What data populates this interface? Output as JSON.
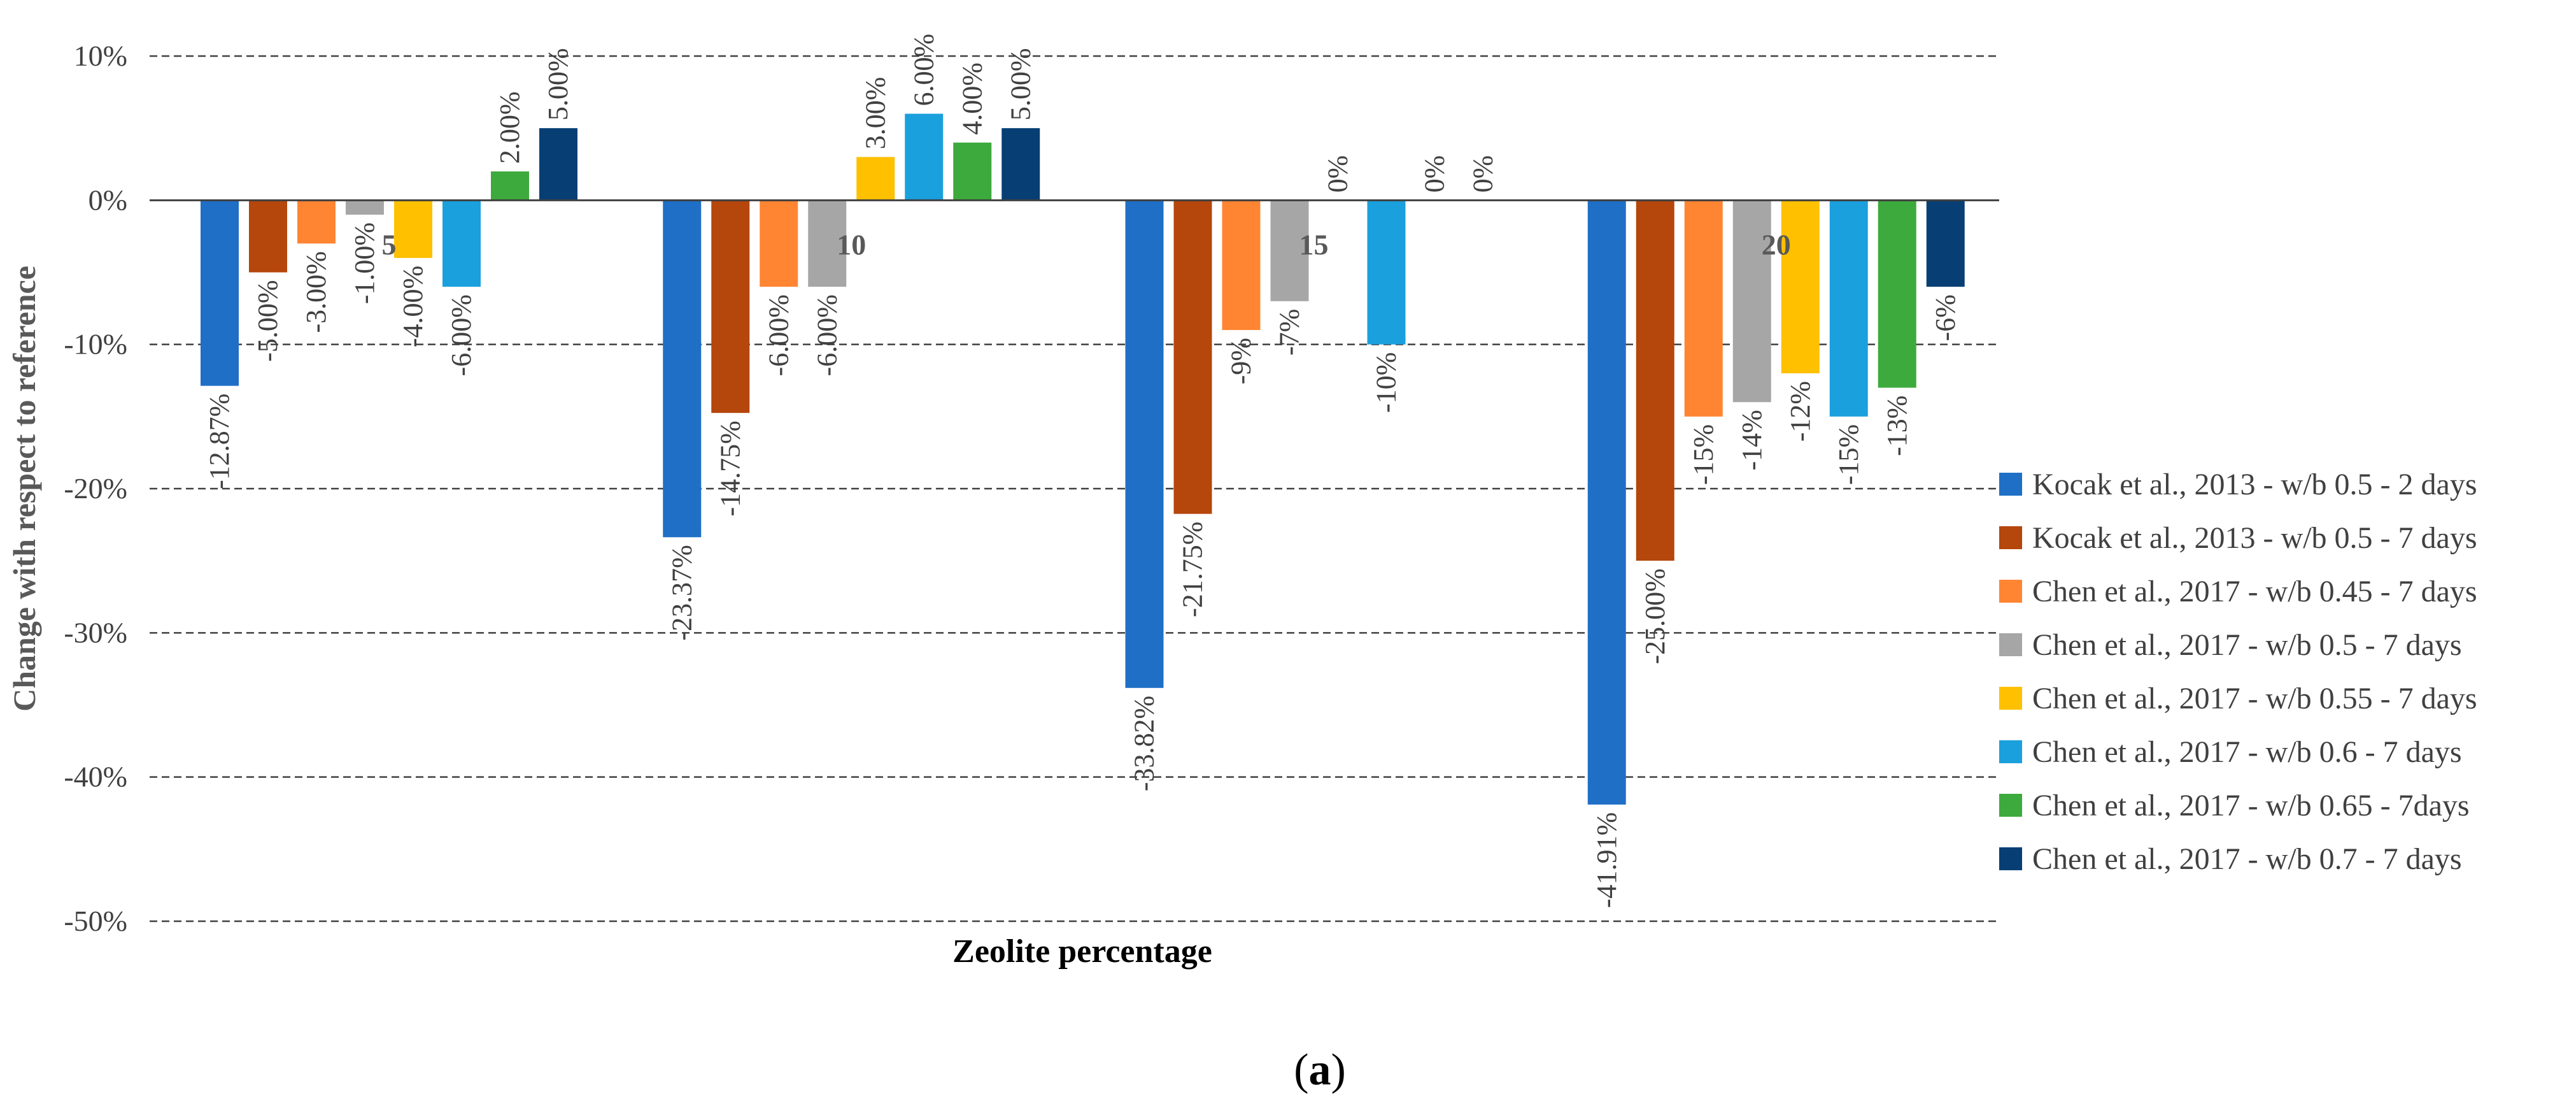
{
  "chart_data": {
    "type": "bar",
    "categories": [
      "5",
      "10",
      "15",
      "20"
    ],
    "ylabel": "Change with respect to reference",
    "xlabel": "Zeolite percentage",
    "ylim": [
      -50,
      10
    ],
    "yticks": [
      10,
      0,
      -10,
      -20,
      -30,
      -40,
      -50
    ],
    "ytick_labels": [
      "10%",
      "0%",
      "-10%",
      "-20%",
      "-30%",
      "-40%",
      "-50%"
    ],
    "grid": "horizontal dashed",
    "legend_position": "right",
    "series": [
      {
        "name": "Kocak et al., 2013 - w/b 0.5 - 2 days",
        "color": "#1F6FC6",
        "values": [
          -12.87,
          -23.37,
          -33.82,
          -41.91
        ],
        "labels": [
          "-12.87%",
          "-23.37%",
          "-33.82%",
          "-41.91%"
        ]
      },
      {
        "name": "Kocak et al., 2013 - w/b 0.5 - 7 days",
        "color": "#B5460C",
        "values": [
          -5.0,
          -14.75,
          -21.75,
          -25.0
        ],
        "labels": [
          "-5.00%",
          "-14.75%",
          "-21.75%",
          "-25.00%"
        ]
      },
      {
        "name": "Chen et al., 2017 - w/b 0.45 - 7 days",
        "color": "#FF8533",
        "values": [
          -3.0,
          -6.0,
          -9,
          -15
        ],
        "labels": [
          "-3.00%",
          "-6.00%",
          "-9%",
          "-15%"
        ]
      },
      {
        "name": "Chen et al., 2017 - w/b 0.5 - 7 days",
        "color": "#A6A6A6",
        "values": [
          -1.0,
          -6.0,
          -7,
          -14
        ],
        "labels": [
          "-1.00%",
          "-6.00%",
          "-7%",
          "-14%"
        ]
      },
      {
        "name": "Chen et al., 2017 - w/b 0.55 - 7 days",
        "color": "#FFC000",
        "values": [
          -4.0,
          3.0,
          0,
          -12
        ],
        "labels": [
          "-4.00%",
          "3.00%",
          "0%",
          "-12%"
        ]
      },
      {
        "name": "Chen et al., 2017 - w/b 0.6 - 7 days",
        "color": "#1AA0DD",
        "values": [
          -6.0,
          6.0,
          -10,
          -15
        ],
        "labels": [
          "-6.00%",
          "6.00%",
          "-10%",
          "-15%"
        ]
      },
      {
        "name": "Chen et al., 2017 - w/b 0.65 - 7days",
        "color": "#3DAA3D",
        "values": [
          2.0,
          4.0,
          0,
          -13
        ],
        "labels": [
          "2.00%",
          "4.00%",
          "0%",
          "-13%"
        ]
      },
      {
        "name": "Chen et al., 2017 - w/b 0.7 - 7 days",
        "color": "#073F74",
        "values": [
          5.0,
          5.0,
          0,
          -6
        ],
        "labels": [
          "5.00%",
          "5.00%",
          "0%",
          "-6%"
        ]
      }
    ]
  },
  "caption": {
    "open": "(",
    "letter": "a",
    "close": ")"
  }
}
